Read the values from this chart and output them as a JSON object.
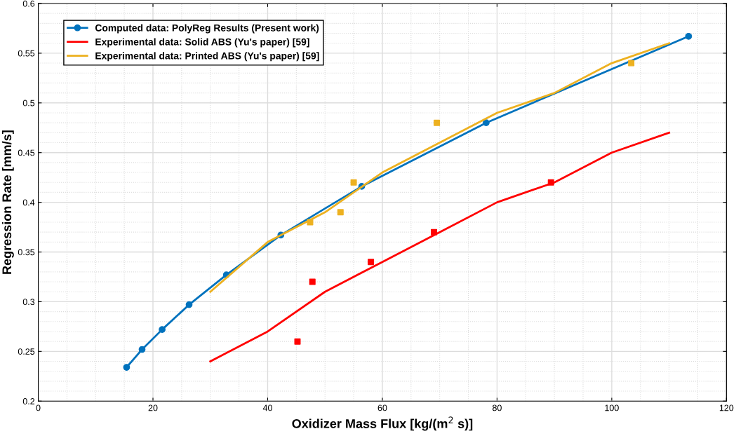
{
  "chart_data": {
    "type": "line",
    "xlabel": "Oxidizer Mass Flux [kg/(m$^{2}$ s)]",
    "ylabel": "Regression Rate [mm/s]",
    "xlim": [
      0,
      120
    ],
    "xticks": [
      0,
      20,
      40,
      60,
      80,
      100,
      120
    ],
    "ylim": [
      0.2,
      0.6
    ],
    "yticks": [
      0.2,
      0.25,
      0.3,
      0.35,
      0.4,
      0.45,
      0.5,
      0.55,
      0.6
    ],
    "grid": true,
    "legend": "top left",
    "series": [
      {
        "name": "Computed data: PolyReg Results (Present work)",
        "marker": "circle",
        "color": "#0072bd",
        "x": [
          15.4,
          18.1,
          21.6,
          26.3,
          32.8,
          42.3,
          56.4,
          78.1,
          113.4
        ],
        "values": [
          0.234,
          0.252,
          0.272,
          0.297,
          0.327,
          0.367,
          0.416,
          0.48,
          0.567
        ]
      },
      {
        "name": "Experimental data: Solid ABS (Yu's paper) [59]",
        "color": "#ff0000",
        "x": [
          30,
          40,
          50,
          60,
          70,
          80,
          90,
          100,
          110
        ],
        "values": [
          0.24,
          0.27,
          0.31,
          0.34,
          0.37,
          0.4,
          0.42,
          0.45,
          0.47
        ]
      },
      {
        "name": "Experimental data: Printed ABS (Yu's paper) [59]",
        "color": "#edb120",
        "x": [
          30,
          40,
          50,
          60,
          70,
          80,
          90,
          100,
          110
        ],
        "values": [
          0.31,
          0.36,
          0.39,
          0.43,
          0.46,
          0.49,
          0.51,
          0.54,
          0.56
        ]
      },
      {
        "type": "scatter",
        "marker": "square",
        "color": "#ff0000",
        "x": [
          45.2,
          47.8,
          58,
          69,
          89.4
        ],
        "values": [
          0.26,
          0.32,
          0.34,
          0.37,
          0.42
        ]
      },
      {
        "type": "scatter",
        "marker": "square",
        "color": "#edb120",
        "x": [
          47.4,
          52.7,
          55,
          69.5,
          103.4
        ],
        "values": [
          0.38,
          0.39,
          0.42,
          0.48,
          0.54
        ]
      }
    ]
  }
}
